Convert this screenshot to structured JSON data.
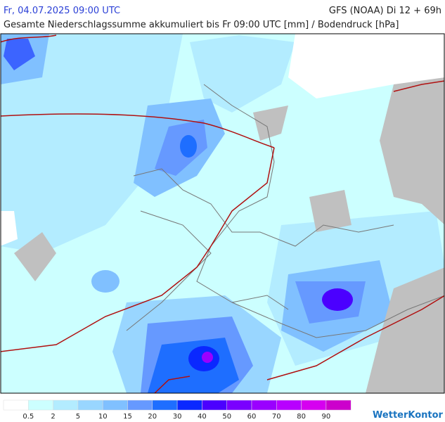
{
  "header": {
    "time": "Fr, 04.07.2025 09:00 UTC",
    "model": "GFS (NOAA) Di 12 + 69h",
    "subtitle": "Gesamte Niederschlagssumme akkumuliert bis Fr 09:00 UTC [mm] / Bodendruck [hPa]"
  },
  "legend": {
    "colors": [
      "#ffffff",
      "#ccffff",
      "#b3ecff",
      "#99d6ff",
      "#80c0ff",
      "#6699ff",
      "#1e6eff",
      "#0a28ff",
      "#4b00ff",
      "#7a00ff",
      "#9a00ff",
      "#b800ff",
      "#d600f0",
      "#cc00cc"
    ],
    "labels": [
      0.5,
      2,
      5,
      10,
      15,
      20,
      30,
      40,
      50,
      60,
      70,
      80,
      90
    ]
  },
  "logo": "WetterKontor"
}
